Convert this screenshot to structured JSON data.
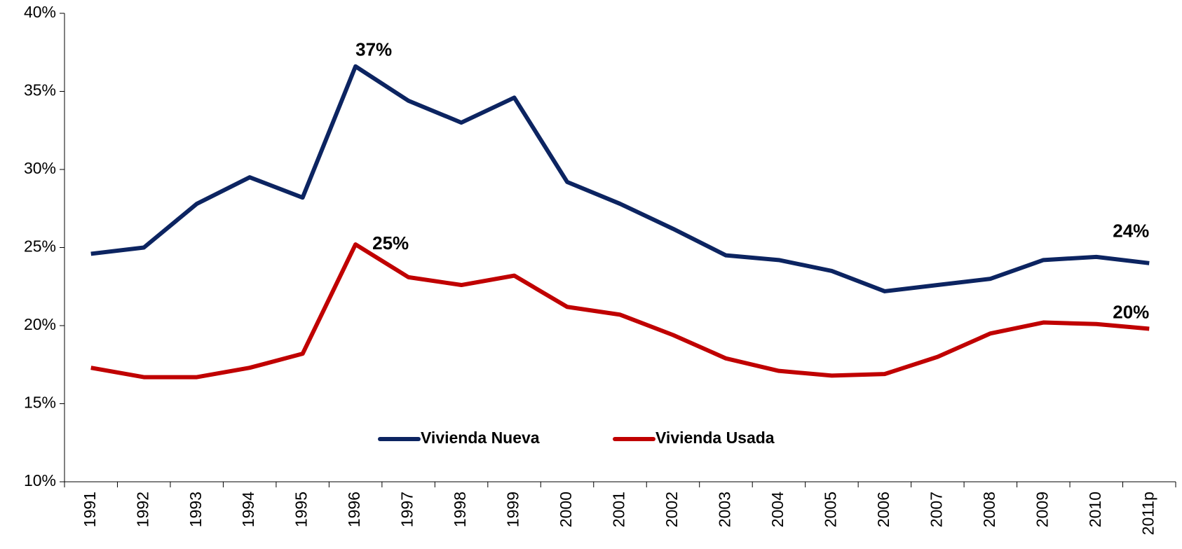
{
  "chart_data": {
    "type": "line",
    "categories": [
      "1991",
      "1992",
      "1993",
      "1994",
      "1995",
      "1996",
      "1997",
      "1998",
      "1999",
      "2000",
      "2001",
      "2002",
      "2003",
      "2004",
      "2005",
      "2006",
      "2007",
      "2008",
      "2009",
      "2010",
      "2011p"
    ],
    "series": [
      {
        "name": "Vivienda Nueva",
        "color": "#0c2461",
        "values": [
          24.6,
          25.0,
          27.8,
          29.5,
          28.2,
          36.6,
          34.4,
          33.0,
          34.6,
          29.2,
          27.8,
          26.2,
          24.5,
          24.2,
          23.5,
          22.2,
          22.6,
          23.0,
          24.2,
          24.4,
          24.0
        ],
        "value_labels": [
          null,
          null,
          null,
          null,
          null,
          "37%",
          null,
          null,
          null,
          null,
          null,
          null,
          null,
          null,
          null,
          null,
          null,
          null,
          null,
          null,
          "24%"
        ]
      },
      {
        "name": "Vivienda Usada",
        "color": "#c00000",
        "values": [
          17.3,
          16.7,
          16.7,
          17.3,
          18.2,
          25.2,
          23.1,
          22.6,
          23.2,
          21.2,
          20.7,
          19.4,
          17.9,
          17.1,
          16.8,
          16.9,
          18.0,
          19.5,
          20.2,
          20.1,
          19.8
        ],
        "value_labels": [
          null,
          null,
          null,
          null,
          null,
          "25%",
          null,
          null,
          null,
          null,
          null,
          null,
          null,
          null,
          null,
          null,
          null,
          null,
          null,
          null,
          "20%"
        ]
      }
    ],
    "ylim": [
      10,
      40
    ],
    "yticks": [
      {
        "value": 10,
        "label": "10%"
      },
      {
        "value": 15,
        "label": "15%"
      },
      {
        "value": 20,
        "label": "20%"
      },
      {
        "value": 25,
        "label": "25%"
      },
      {
        "value": 30,
        "label": "30%"
      },
      {
        "value": 35,
        "label": "35%"
      },
      {
        "value": 40,
        "label": "40%"
      }
    ],
    "grid": false,
    "legend": "bottom"
  }
}
